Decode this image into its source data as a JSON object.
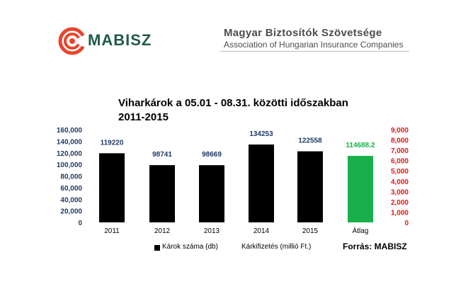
{
  "header": {
    "logo_text": "MABISZ",
    "org_name": "Magyar Biztosítók Szövetsége",
    "org_name_en": "Association of Hungarian Insurance Companies"
  },
  "chart_data": {
    "type": "bar",
    "title_line1": "Viharkárok a 05.01 - 08.31. közötti időszakban",
    "title_line2": "2011-2015",
    "categories": [
      "2011",
      "2012",
      "2013",
      "2014",
      "2015",
      "Átlag"
    ],
    "series": [
      {
        "name": "Károk száma (db)",
        "values": [
          119220,
          98741,
          98669,
          134253,
          122558,
          114688.2
        ],
        "data_labels": [
          "119220",
          "98741",
          "98669",
          "134253",
          "122558",
          "114688.2"
        ],
        "colors": [
          "#000000",
          "#000000",
          "#000000",
          "#000000",
          "#000000",
          "#19b04b"
        ],
        "label_colors": [
          "#1f3864",
          "#1f3864",
          "#1f3864",
          "#1f3864",
          "#1f3864",
          "#19b04b"
        ]
      }
    ],
    "legend": [
      "Károk száma (db)",
      "Kárkifizetés (millió Ft.)"
    ],
    "left_axis": {
      "range": [
        0,
        160000
      ],
      "ticks": [
        "160,000",
        "140,000",
        "120,000",
        "100,000",
        "80,000",
        "60,000",
        "40,000",
        "20,000",
        "0"
      ],
      "color": "#1f3864"
    },
    "right_axis": {
      "range": [
        0,
        9000
      ],
      "ticks": [
        "9,000",
        "8,000",
        "7,000",
        "6,000",
        "5,000",
        "4,000",
        "3,000",
        "2,000",
        "1,000",
        "0"
      ],
      "color": "#e8140f"
    },
    "grid": false,
    "source": "Forrás: MABISZ"
  },
  "colors": {
    "logo_red": "#e8452c",
    "logo_green": "#1f5b4a",
    "avg_bar": "#19b04b",
    "left_axis": "#1f3864",
    "right_axis": "#e8140f"
  }
}
